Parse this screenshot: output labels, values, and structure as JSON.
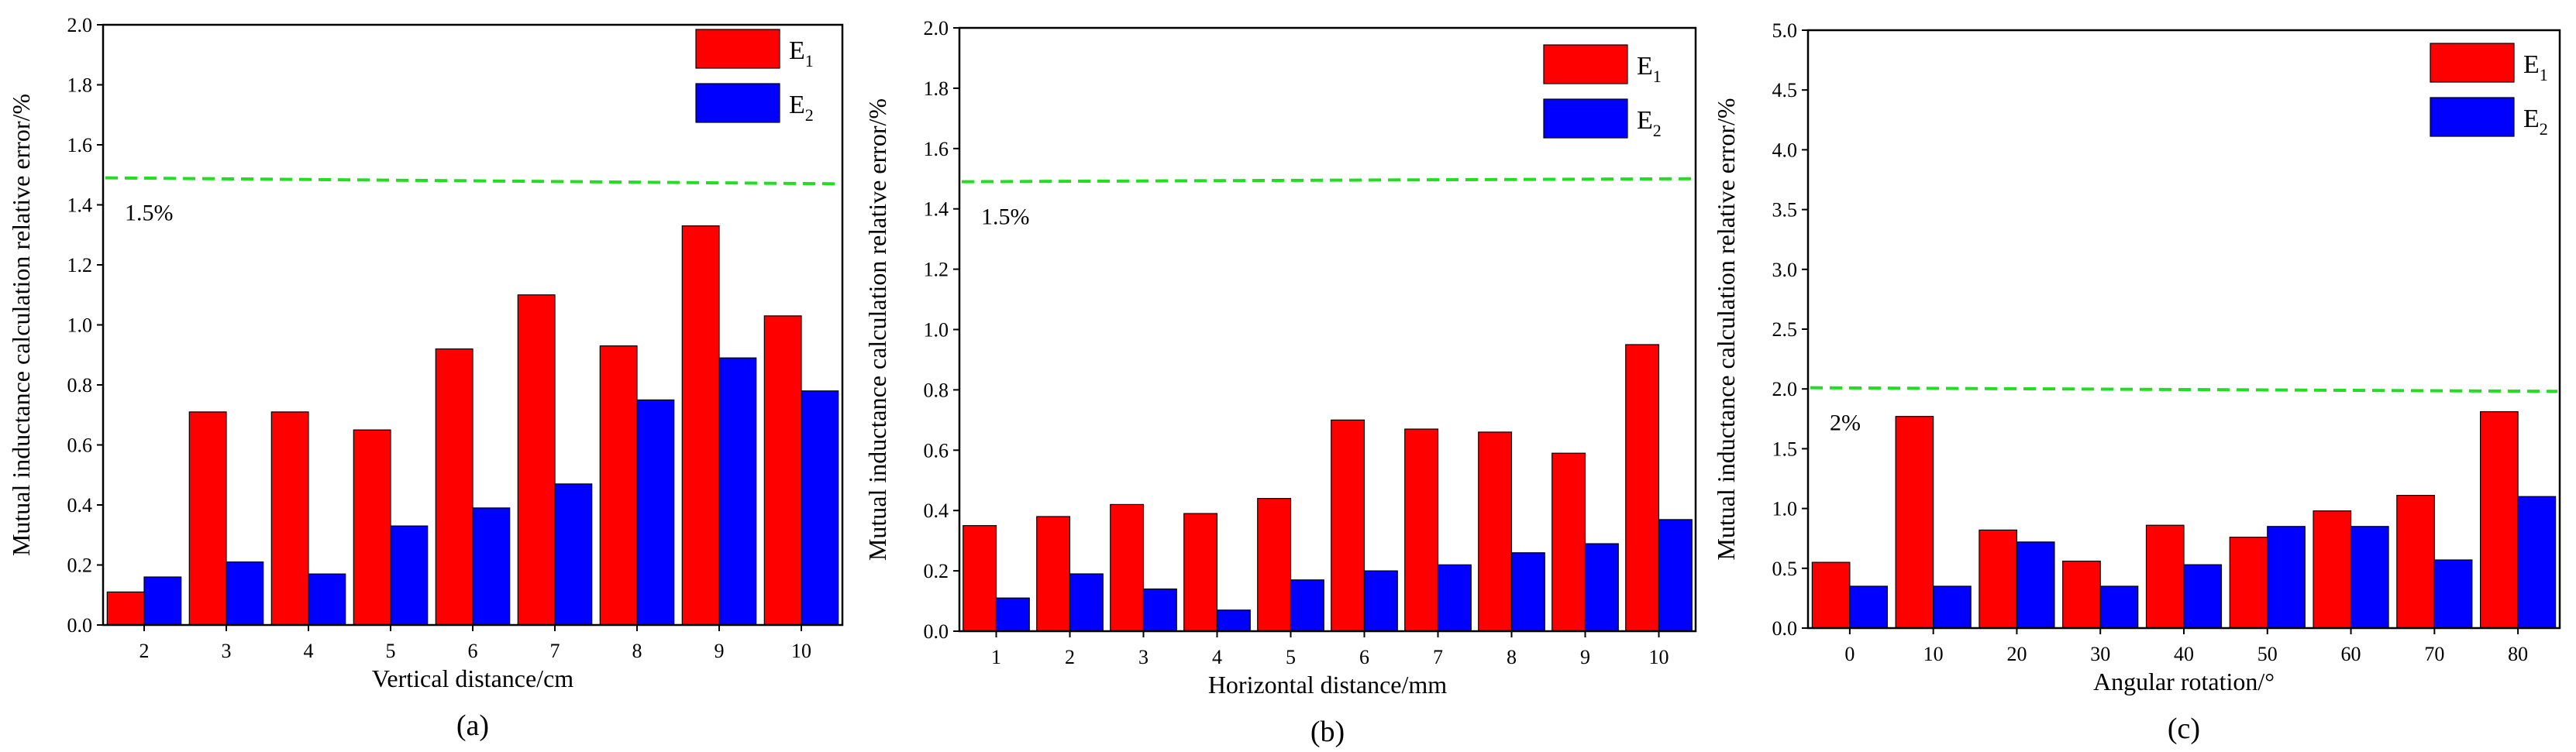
{
  "chart_data": [
    {
      "type": "bar",
      "panel": "(a)",
      "categories": [
        "2",
        "3",
        "4",
        "5",
        "6",
        "7",
        "8",
        "9",
        "10"
      ],
      "series": [
        {
          "name": "E1",
          "label_main": "E",
          "label_sub": "1",
          "color": "#ff0000",
          "values": [
            0.11,
            0.71,
            0.71,
            0.65,
            0.92,
            1.1,
            0.93,
            1.33,
            1.03
          ]
        },
        {
          "name": "E2",
          "label_main": "E",
          "label_sub": "2",
          "color": "#0000ff",
          "values": [
            0.16,
            0.21,
            0.17,
            0.33,
            0.39,
            0.47,
            0.75,
            0.89,
            0.78
          ]
        }
      ],
      "xlabel": "Vertical distance/cm",
      "ylabel": "Mutual inductance calculation relative error/%",
      "ylim": [
        0,
        2.0
      ],
      "yticks": [
        0,
        0.2,
        0.4,
        0.6,
        0.8,
        1.0,
        1.2,
        1.4,
        1.6,
        1.8,
        2.0
      ],
      "ytick_labels": [
        "0.0",
        "0.2",
        "0.4",
        "0.6",
        "0.8",
        "1.0",
        "1.2",
        "1.4",
        "1.6",
        "1.8",
        "2.0"
      ],
      "reference_line": {
        "start": 1.49,
        "end": 1.47,
        "label": "1.5%",
        "color": "#22dd22"
      },
      "legend": "top-right"
    },
    {
      "type": "bar",
      "panel": "(b)",
      "categories": [
        "1",
        "2",
        "3",
        "4",
        "5",
        "6",
        "7",
        "8",
        "9",
        "10"
      ],
      "series": [
        {
          "name": "E1",
          "label_main": "E",
          "label_sub": "1",
          "color": "#ff0000",
          "values": [
            0.35,
            0.38,
            0.42,
            0.39,
            0.44,
            0.7,
            0.67,
            0.66,
            0.59,
            0.95
          ]
        },
        {
          "name": "E2",
          "label_main": "E",
          "label_sub": "2",
          "color": "#0000ff",
          "values": [
            0.11,
            0.19,
            0.14,
            0.07,
            0.17,
            0.2,
            0.22,
            0.26,
            0.29,
            0.37
          ]
        }
      ],
      "xlabel": "Horizontal distance/mm",
      "ylabel": "Mutual inductance calculation relative error/%",
      "ylim": [
        0,
        2.0
      ],
      "yticks": [
        0,
        0.2,
        0.4,
        0.6,
        0.8,
        1.0,
        1.2,
        1.4,
        1.6,
        1.8,
        2.0
      ],
      "ytick_labels": [
        "0.0",
        "0.2",
        "0.4",
        "0.6",
        "0.8",
        "1.0",
        "1.2",
        "1.4",
        "1.6",
        "1.8",
        "2.0"
      ],
      "reference_line": {
        "start": 1.49,
        "end": 1.5,
        "label": "1.5%",
        "color": "#22dd22"
      },
      "legend": "top-right"
    },
    {
      "type": "bar",
      "panel": "(c)",
      "categories": [
        "0",
        "10",
        "20",
        "30",
        "40",
        "50",
        "60",
        "70",
        "80"
      ],
      "series": [
        {
          "name": "E1",
          "label_main": "E",
          "label_sub": "1",
          "color": "#ff0000",
          "values": [
            0.55,
            1.77,
            0.82,
            0.56,
            0.86,
            0.76,
            0.98,
            1.11,
            1.81
          ]
        },
        {
          "name": "E2",
          "label_main": "E",
          "label_sub": "2",
          "color": "#0000ff",
          "values": [
            0.35,
            0.35,
            0.72,
            0.35,
            0.53,
            0.85,
            0.85,
            0.57,
            1.1
          ]
        }
      ],
      "xlabel": "Angular rotation/°",
      "ylabel": "Mutual inductance calculation relative error/%",
      "ylim": [
        0,
        5.0
      ],
      "yticks": [
        0,
        0.5,
        1.0,
        1.5,
        2.0,
        2.5,
        3.0,
        3.5,
        4.0,
        4.5,
        5.0
      ],
      "ytick_labels": [
        "0.0",
        "0.5",
        "1.0",
        "1.5",
        "2.0",
        "2.5",
        "3.0",
        "3.5",
        "4.0",
        "4.5",
        "5.0"
      ],
      "reference_line": {
        "start": 2.01,
        "end": 1.98,
        "label": "2%",
        "color": "#22dd22"
      },
      "legend": "top-right"
    }
  ]
}
